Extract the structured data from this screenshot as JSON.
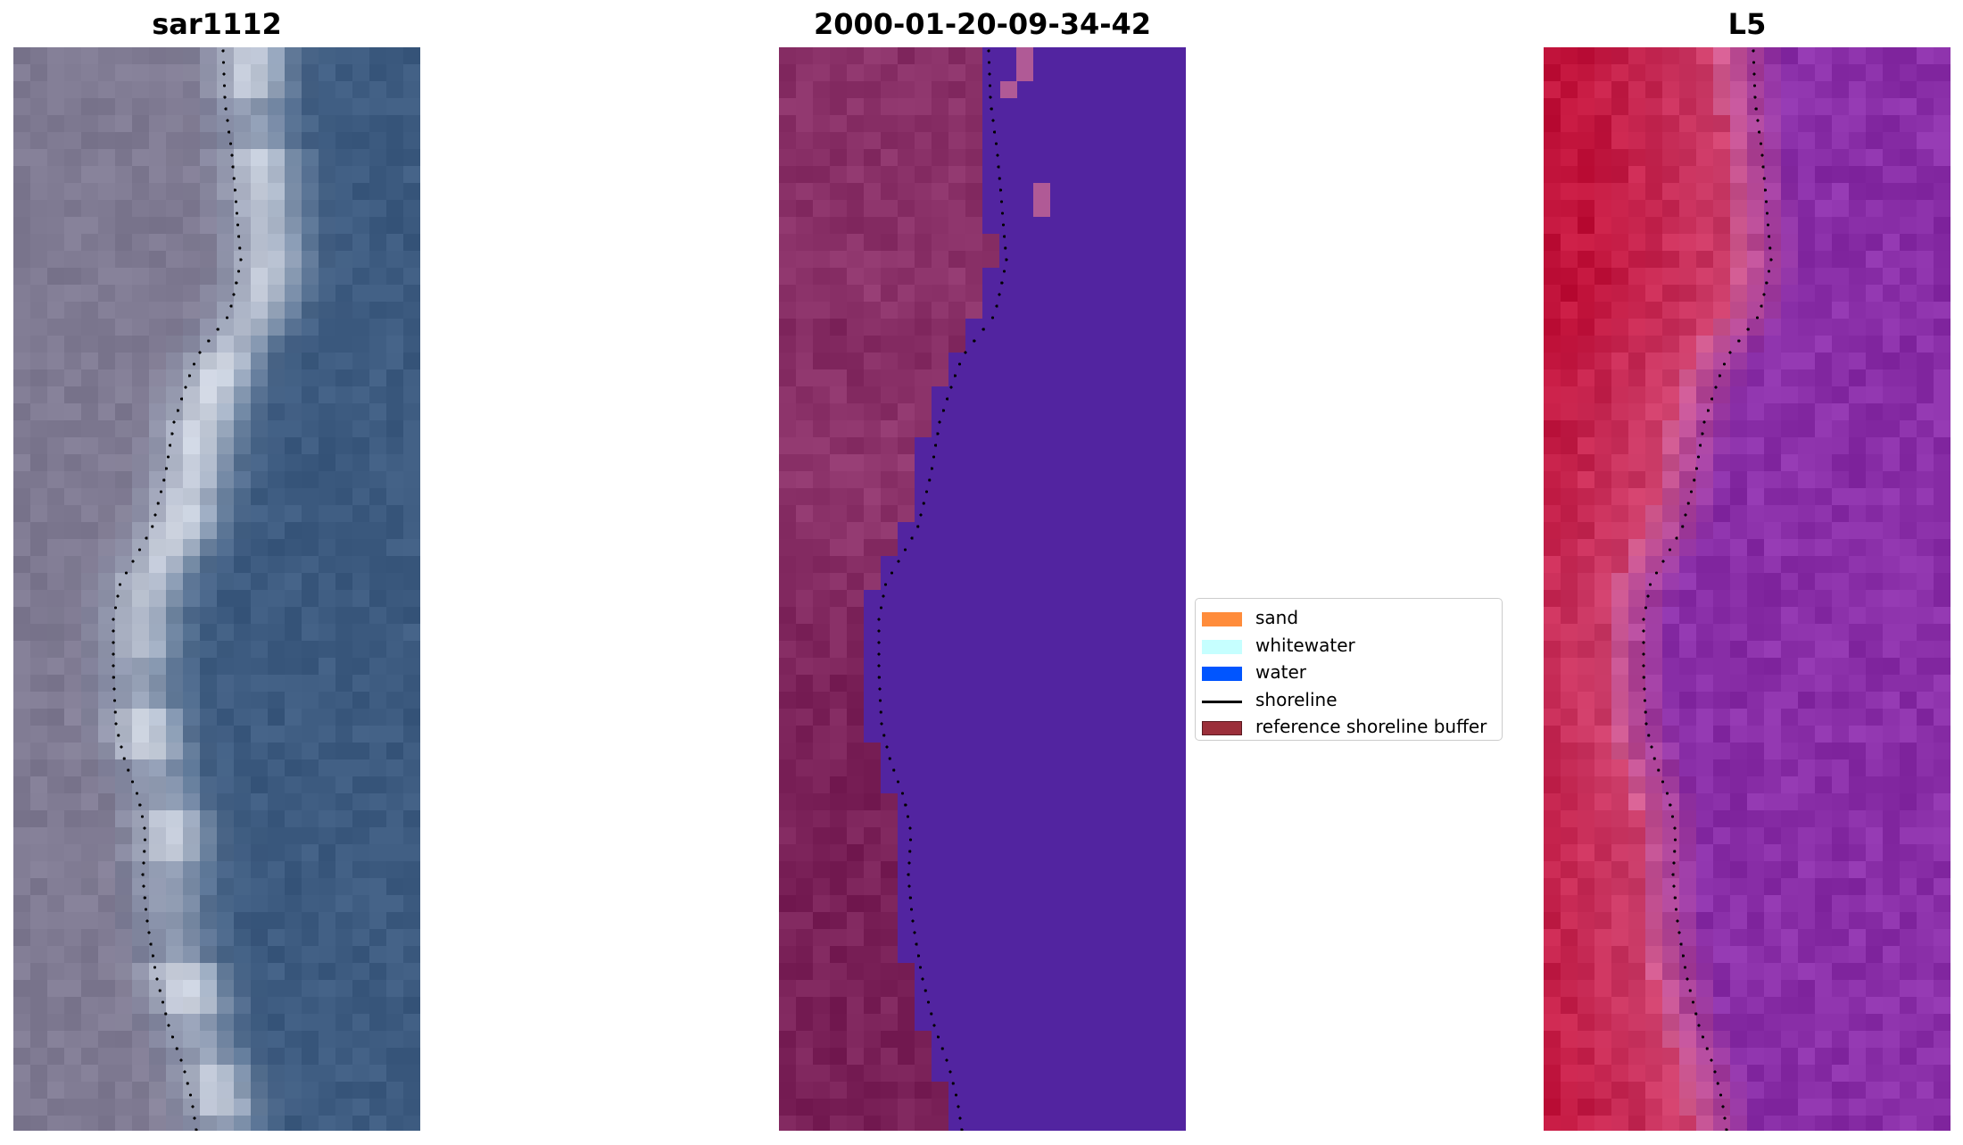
{
  "panels": [
    {
      "title": "sar1112",
      "image": "rgb-satellite-image"
    },
    {
      "title": "2000-01-20-09-34-42",
      "image": "classified-image"
    },
    {
      "title": "L5",
      "image": "false-color-image"
    }
  ],
  "legend": {
    "items": [
      {
        "label": "sand",
        "type": "patch",
        "color": "#ff8c3b",
        "edge": "#ff8c3b"
      },
      {
        "label": "whitewater",
        "type": "patch",
        "color": "#c6ffff",
        "edge": "#c6ffff"
      },
      {
        "label": "water",
        "type": "patch",
        "color": "#0055ff",
        "edge": "#0055ff"
      },
      {
        "label": "shoreline",
        "type": "line",
        "color": "#000000"
      },
      {
        "label": "reference shoreline buffer",
        "type": "patch",
        "color": "#9b2f3a",
        "edge": "#5a1a20"
      }
    ]
  },
  "colors": {
    "rgb_land": "#7f7a92",
    "rgb_water": "#3d5b80",
    "rgb_foam": "#e8ecf4",
    "class_land": "#7a2158",
    "class_water": "#5224a0",
    "class_highlight": "#b05a96",
    "nir_land": "#c2143c",
    "nir_mid": "#d35a8a",
    "nir_water": "#8a2fa8"
  }
}
